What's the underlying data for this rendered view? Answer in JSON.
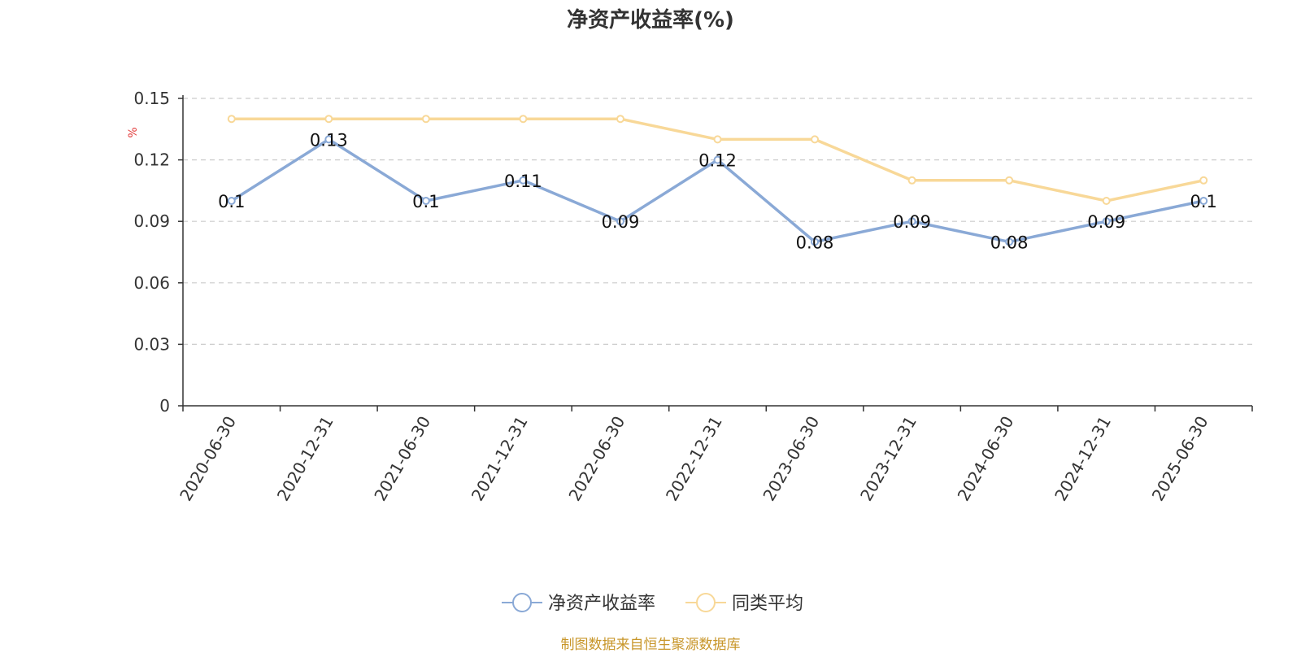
{
  "title": "净资产收益率(%)",
  "source_note": "制图数据来自恒生聚源数据库",
  "colors": {
    "series_main": "#8aa9d6",
    "series_avg": "#f8d898",
    "unit_label": "#e23b3b",
    "axis": "#333333",
    "grid": "#cccccc",
    "source": "#c8962a"
  },
  "chart_data": {
    "type": "line",
    "title": "净资产收益率(%)",
    "ylabel": "%",
    "xlabel": "",
    "categories": [
      "2020-06-30",
      "2020-12-31",
      "2021-06-30",
      "2021-12-31",
      "2022-06-30",
      "2022-12-31",
      "2023-06-30",
      "2023-12-31",
      "2024-06-30",
      "2024-12-31",
      "2025-06-30"
    ],
    "y_ticks": [
      "0",
      "0.03",
      "0.06",
      "0.09",
      "0.12",
      "0.15"
    ],
    "ylim": [
      0,
      0.15
    ],
    "grid": true,
    "legend_position": "bottom",
    "series": [
      {
        "name": "净资产收益率",
        "values": [
          0.1,
          0.13,
          0.1,
          0.11,
          0.09,
          0.12,
          0.08,
          0.09,
          0.08,
          0.09,
          0.1
        ],
        "labels": [
          "0.1",
          "0.13",
          "0.1",
          "0.11",
          "0.09",
          "0.12",
          "0.08",
          "0.09",
          "0.08",
          "0.09",
          "0.1"
        ]
      },
      {
        "name": "同类平均",
        "values": [
          0.14,
          0.14,
          0.14,
          0.14,
          0.14,
          0.13,
          0.13,
          0.11,
          0.11,
          0.1,
          0.11
        ]
      }
    ]
  }
}
